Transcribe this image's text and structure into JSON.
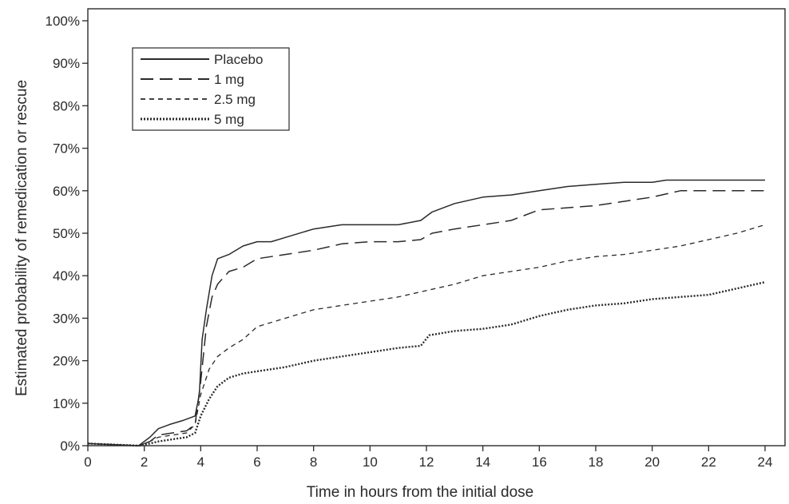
{
  "chart_data": {
    "type": "line",
    "title": "",
    "xlabel": "Time in hours from the initial dose",
    "ylabel": "Estimated probability of remedication or rescue",
    "xlim": [
      0,
      24
    ],
    "ylim": [
      0,
      100
    ],
    "x_ticks": [
      0,
      2,
      4,
      6,
      8,
      10,
      12,
      14,
      16,
      18,
      20,
      22,
      24
    ],
    "x_tick_labels": [
      "0",
      "2",
      "4",
      "6",
      "8",
      "10",
      "12",
      "14",
      "16",
      "18",
      "20",
      "22",
      "24"
    ],
    "y_ticks": [
      0,
      10,
      20,
      30,
      40,
      50,
      60,
      70,
      80,
      90,
      100
    ],
    "y_tick_labels": [
      "0%",
      "10%",
      "20%",
      "30%",
      "40%",
      "50%",
      "60%",
      "70%",
      "80%",
      "90%",
      "100%"
    ],
    "grid": false,
    "legend_position": "top-left",
    "series": [
      {
        "name": "Placebo",
        "style": "solid",
        "color": "#2a2a2a",
        "points": [
          [
            0,
            0.5
          ],
          [
            1.8,
            0
          ],
          [
            2.2,
            2
          ],
          [
            2.5,
            4
          ],
          [
            2.9,
            5
          ],
          [
            3.4,
            6
          ],
          [
            3.8,
            7
          ],
          [
            3.95,
            12
          ],
          [
            4.05,
            25
          ],
          [
            4.2,
            32
          ],
          [
            4.4,
            40
          ],
          [
            4.6,
            44
          ],
          [
            5,
            45
          ],
          [
            5.5,
            47
          ],
          [
            6,
            48
          ],
          [
            6.5,
            48
          ],
          [
            7,
            49
          ],
          [
            8,
            51
          ],
          [
            9,
            52
          ],
          [
            10,
            52
          ],
          [
            11,
            52
          ],
          [
            11.8,
            53
          ],
          [
            12.2,
            55
          ],
          [
            13,
            57
          ],
          [
            14,
            58.5
          ],
          [
            15,
            59
          ],
          [
            16,
            60
          ],
          [
            17,
            61
          ],
          [
            18,
            61.5
          ],
          [
            19,
            62
          ],
          [
            20,
            62
          ],
          [
            20.5,
            62.5
          ],
          [
            21,
            62.5
          ],
          [
            24,
            62.5
          ]
        ]
      },
      {
        "name": "1 mg",
        "style": "long-dash",
        "color": "#2a2a2a",
        "points": [
          [
            0,
            0.5
          ],
          [
            1.8,
            0
          ],
          [
            2.2,
            1
          ],
          [
            2.5,
            2.5
          ],
          [
            3,
            3
          ],
          [
            3.5,
            3.5
          ],
          [
            3.8,
            5
          ],
          [
            4,
            15
          ],
          [
            4.2,
            28
          ],
          [
            4.4,
            35
          ],
          [
            4.6,
            38
          ],
          [
            5,
            41
          ],
          [
            5.5,
            42
          ],
          [
            6,
            44
          ],
          [
            7,
            45
          ],
          [
            8,
            46
          ],
          [
            9,
            47.5
          ],
          [
            10,
            48
          ],
          [
            11,
            48
          ],
          [
            11.8,
            48.5
          ],
          [
            12.2,
            50
          ],
          [
            13,
            51
          ],
          [
            14,
            52
          ],
          [
            15,
            53
          ],
          [
            16,
            55.5
          ],
          [
            17,
            56
          ],
          [
            18,
            56.5
          ],
          [
            19,
            57.5
          ],
          [
            20,
            58.5
          ],
          [
            21,
            60
          ],
          [
            24,
            60
          ]
        ]
      },
      {
        "name": "2.5 mg",
        "style": "short-dash",
        "color": "#2a2a2a",
        "points": [
          [
            0,
            0.5
          ],
          [
            1.8,
            0
          ],
          [
            2.2,
            1
          ],
          [
            2.5,
            2
          ],
          [
            3,
            2.5
          ],
          [
            3.5,
            3
          ],
          [
            3.8,
            5
          ],
          [
            4,
            12
          ],
          [
            4.3,
            18
          ],
          [
            4.6,
            21
          ],
          [
            5,
            23
          ],
          [
            5.5,
            25
          ],
          [
            6,
            28
          ],
          [
            7,
            30
          ],
          [
            8,
            32
          ],
          [
            9,
            33
          ],
          [
            10,
            34
          ],
          [
            11,
            35
          ],
          [
            12,
            36.5
          ],
          [
            13,
            38
          ],
          [
            14,
            40
          ],
          [
            15,
            41
          ],
          [
            16,
            42
          ],
          [
            17,
            43.5
          ],
          [
            18,
            44.5
          ],
          [
            19,
            45
          ],
          [
            20,
            46
          ],
          [
            21,
            47
          ],
          [
            22,
            48.5
          ],
          [
            23,
            50
          ],
          [
            24,
            52
          ]
        ]
      },
      {
        "name": "5 mg",
        "style": "dotted",
        "color": "#2a2a2a",
        "points": [
          [
            0,
            0.5
          ],
          [
            1.8,
            0
          ],
          [
            2.2,
            0.5
          ],
          [
            2.5,
            1
          ],
          [
            3,
            1.5
          ],
          [
            3.5,
            2
          ],
          [
            3.8,
            3
          ],
          [
            4,
            7
          ],
          [
            4.3,
            11
          ],
          [
            4.6,
            14
          ],
          [
            5,
            16
          ],
          [
            5.5,
            17
          ],
          [
            6,
            17.5
          ],
          [
            7,
            18.5
          ],
          [
            8,
            20
          ],
          [
            9,
            21
          ],
          [
            10,
            22
          ],
          [
            11,
            23
          ],
          [
            11.8,
            23.5
          ],
          [
            12.1,
            26
          ],
          [
            13,
            27
          ],
          [
            14,
            27.5
          ],
          [
            15,
            28.5
          ],
          [
            16,
            30.5
          ],
          [
            17,
            32
          ],
          [
            18,
            33
          ],
          [
            19,
            33.5
          ],
          [
            20,
            34.5
          ],
          [
            21,
            35
          ],
          [
            22,
            35.5
          ],
          [
            23,
            37
          ],
          [
            24,
            38.5
          ]
        ]
      }
    ]
  }
}
